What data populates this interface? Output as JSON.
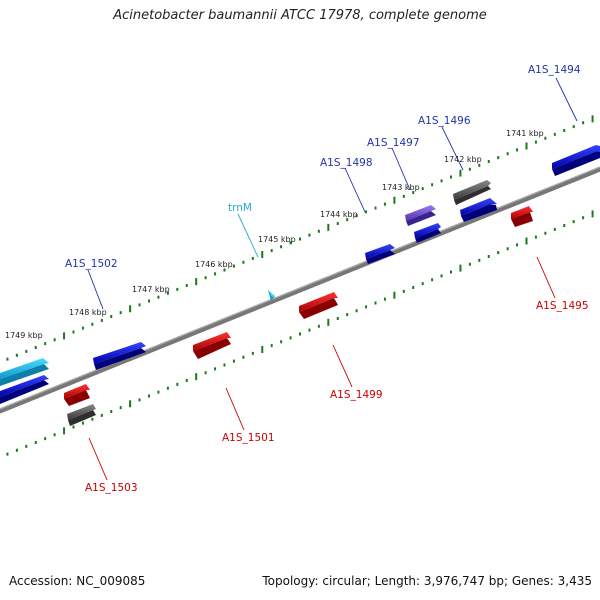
{
  "title": "Acinetobacter baumannii ATCC 17978, complete genome",
  "footer": {
    "accession": "Accession: NC_009085",
    "topology": "Topology: circular; Length: 3,976,747 bp; Genes: 3,435"
  },
  "colors": {
    "backbone": "#808080",
    "forward_gene": "#0000ee",
    "reverse_gene": "#ee0000",
    "trna": "#22bbdd",
    "other_gene": "#606060",
    "purple_gene": "#7755cc",
    "tick": "#1a7a1a",
    "forward_label": "#2233aa",
    "reverse_label": "#cc0000",
    "trna_label": "#22aadd"
  },
  "tick_labels": [
    "1741 kbp",
    "1742 kbp",
    "1743 kbp",
    "1744 kbp",
    "1745 kbp",
    "1746 kbp",
    "1747 kbp",
    "1748 kbp",
    "1749 kbp"
  ],
  "gene_labels": {
    "forward": [
      "A1S_1494",
      "A1S_1496",
      "A1S_1497",
      "A1S_1498",
      "A1S_1502"
    ],
    "trna": [
      "trnM"
    ],
    "reverse": [
      "A1S_1495",
      "A1S_1499",
      "A1S_1501",
      "A1S_1503"
    ]
  }
}
